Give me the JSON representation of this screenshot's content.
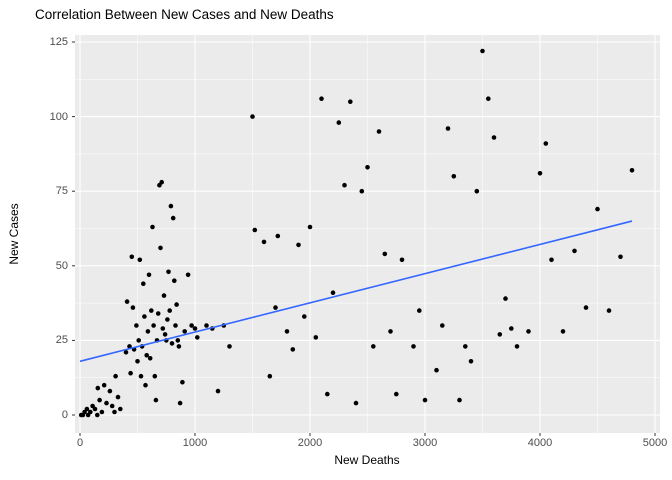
{
  "chart_data": {
    "type": "scatter",
    "title": "Correlation Between New Cases and New Deaths",
    "xlabel": "New Deaths",
    "ylabel": "New Cases",
    "xlim": [
      0,
      5000
    ],
    "ylim": [
      0,
      125
    ],
    "x_ticks": [
      0,
      1000,
      2000,
      3000,
      4000,
      5000
    ],
    "y_ticks": [
      0,
      25,
      50,
      75,
      100,
      125
    ],
    "grid": "on",
    "legend": "none",
    "colors": {
      "panel_bg": "#EBEBEB",
      "grid_major": "#FFFFFF",
      "grid_minor": "#F5F5F5",
      "point": "#000000",
      "trend": "#3366FF",
      "tick_mark": "#333333",
      "tick_label": "#4D4D4D"
    },
    "trend_line": {
      "x1": 0,
      "y1": 18,
      "x2": 4800,
      "y2": 65
    },
    "points": [
      [
        10,
        0
      ],
      [
        25,
        0
      ],
      [
        40,
        1
      ],
      [
        60,
        2
      ],
      [
        70,
        0
      ],
      [
        90,
        1
      ],
      [
        110,
        3
      ],
      [
        130,
        2
      ],
      [
        150,
        0
      ],
      [
        155,
        9
      ],
      [
        170,
        5
      ],
      [
        190,
        1
      ],
      [
        210,
        10
      ],
      [
        230,
        4
      ],
      [
        260,
        8
      ],
      [
        280,
        3
      ],
      [
        300,
        1
      ],
      [
        310,
        13
      ],
      [
        330,
        6
      ],
      [
        350,
        2
      ],
      [
        400,
        21
      ],
      [
        410,
        38
      ],
      [
        430,
        23
      ],
      [
        440,
        14
      ],
      [
        450,
        53
      ],
      [
        460,
        36
      ],
      [
        470,
        22
      ],
      [
        490,
        30
      ],
      [
        500,
        18
      ],
      [
        510,
        25
      ],
      [
        520,
        52
      ],
      [
        530,
        13
      ],
      [
        540,
        23
      ],
      [
        550,
        44
      ],
      [
        560,
        33
      ],
      [
        570,
        10
      ],
      [
        580,
        20
      ],
      [
        590,
        28
      ],
      [
        600,
        47
      ],
      [
        610,
        19
      ],
      [
        620,
        35
      ],
      [
        630,
        63
      ],
      [
        640,
        30
      ],
      [
        650,
        13
      ],
      [
        660,
        5
      ],
      [
        670,
        25
      ],
      [
        680,
        34
      ],
      [
        690,
        77
      ],
      [
        700,
        56
      ],
      [
        710,
        78
      ],
      [
        720,
        29
      ],
      [
        730,
        40
      ],
      [
        740,
        27
      ],
      [
        750,
        25
      ],
      [
        760,
        32
      ],
      [
        770,
        48
      ],
      [
        780,
        35
      ],
      [
        790,
        70
      ],
      [
        800,
        24
      ],
      [
        810,
        66
      ],
      [
        820,
        45
      ],
      [
        830,
        30
      ],
      [
        840,
        37
      ],
      [
        850,
        25
      ],
      [
        860,
        23
      ],
      [
        870,
        4
      ],
      [
        890,
        11
      ],
      [
        910,
        28
      ],
      [
        940,
        47
      ],
      [
        970,
        30
      ],
      [
        1000,
        29
      ],
      [
        1020,
        26
      ],
      [
        1100,
        30
      ],
      [
        1150,
        29
      ],
      [
        1200,
        8
      ],
      [
        1250,
        30
      ],
      [
        1300,
        23
      ],
      [
        1500,
        100
      ],
      [
        1520,
        62
      ],
      [
        1600,
        58
      ],
      [
        1650,
        13
      ],
      [
        1700,
        36
      ],
      [
        1720,
        60
      ],
      [
        1800,
        28
      ],
      [
        1850,
        22
      ],
      [
        1900,
        57
      ],
      [
        1950,
        33
      ],
      [
        2000,
        63
      ],
      [
        2050,
        26
      ],
      [
        2100,
        106
      ],
      [
        2150,
        7
      ],
      [
        2200,
        41
      ],
      [
        2250,
        98
      ],
      [
        2300,
        77
      ],
      [
        2350,
        105
      ],
      [
        2400,
        4
      ],
      [
        2450,
        75
      ],
      [
        2500,
        83
      ],
      [
        2550,
        23
      ],
      [
        2600,
        95
      ],
      [
        2650,
        54
      ],
      [
        2700,
        28
      ],
      [
        2750,
        7
      ],
      [
        2800,
        52
      ],
      [
        2900,
        23
      ],
      [
        2950,
        35
      ],
      [
        3000,
        5
      ],
      [
        3100,
        15
      ],
      [
        3150,
        30
      ],
      [
        3200,
        96
      ],
      [
        3250,
        80
      ],
      [
        3300,
        5
      ],
      [
        3350,
        23
      ],
      [
        3400,
        18
      ],
      [
        3450,
        75
      ],
      [
        3500,
        122
      ],
      [
        3550,
        106
      ],
      [
        3600,
        93
      ],
      [
        3650,
        27
      ],
      [
        3700,
        39
      ],
      [
        3750,
        29
      ],
      [
        3800,
        23
      ],
      [
        3900,
        28
      ],
      [
        4000,
        81
      ],
      [
        4050,
        91
      ],
      [
        4100,
        52
      ],
      [
        4200,
        28
      ],
      [
        4300,
        55
      ],
      [
        4400,
        36
      ],
      [
        4500,
        69
      ],
      [
        4600,
        35
      ],
      [
        4700,
        53
      ],
      [
        4800,
        82
      ]
    ]
  }
}
